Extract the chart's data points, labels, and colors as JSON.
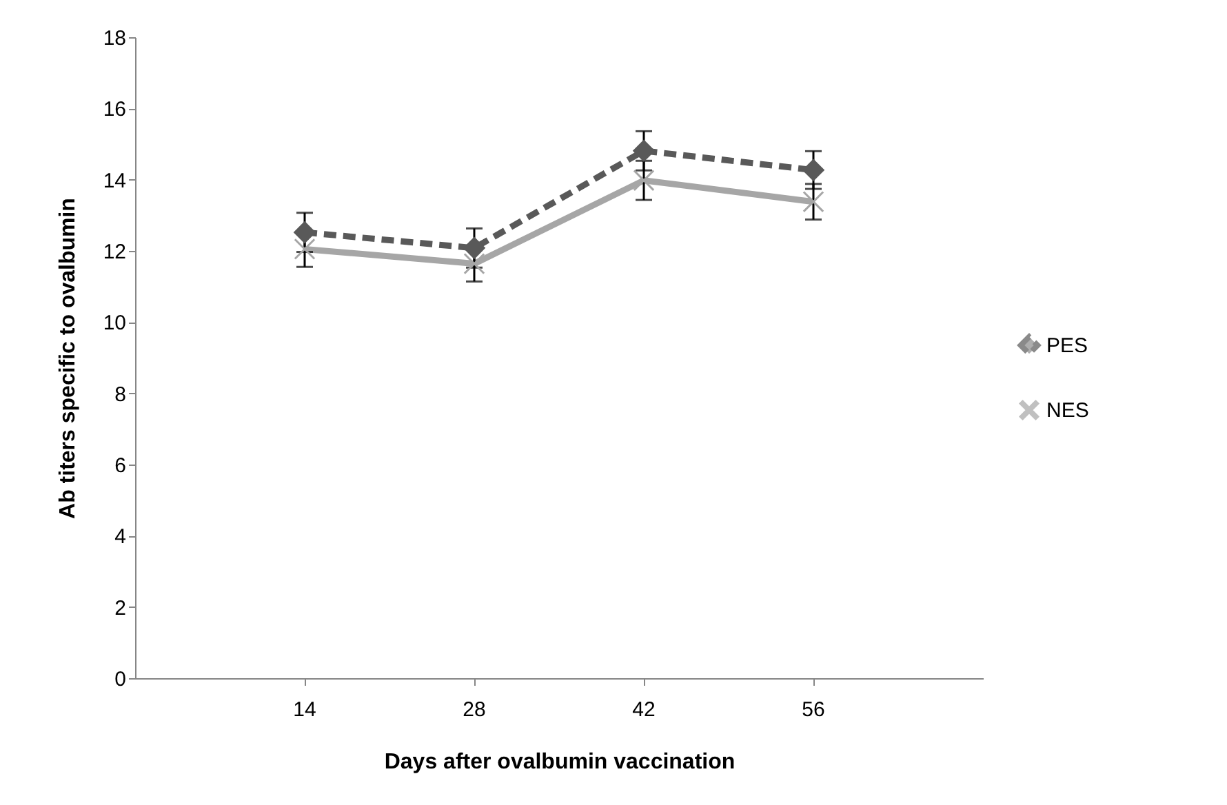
{
  "chart_data": {
    "type": "line",
    "xlabel": "Days after ovalbumin vaccination",
    "ylabel": "Ab titers specific to ovalbumin",
    "categories": [
      "14",
      "28",
      "42",
      "56"
    ],
    "series": [
      {
        "name": "PES",
        "color": "#595959",
        "marker": "diamond",
        "line_style": "dashed",
        "values": [
          12.52,
          12.08,
          14.81,
          14.27
        ],
        "errors": [
          0.55,
          0.55,
          0.55,
          0.53
        ]
      },
      {
        "name": "NES",
        "color": "#a6a6a6",
        "marker": "cross",
        "line_style": "solid",
        "values": [
          12.05,
          11.64,
          13.98,
          13.38
        ],
        "errors": [
          0.5,
          0.5,
          0.55,
          0.5
        ]
      }
    ],
    "ylim": [
      0,
      18
    ],
    "yticks": [
      0,
      2,
      4,
      6,
      8,
      10,
      12,
      14,
      16,
      18
    ],
    "grid": false,
    "legend": "right"
  }
}
